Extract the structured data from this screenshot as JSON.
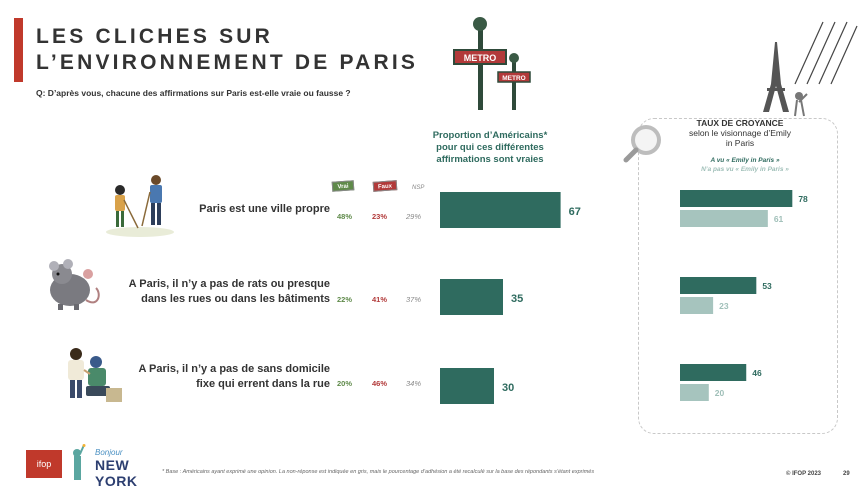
{
  "header": {
    "title_line1": "LES CLICHES SUR",
    "title_line2": "L’ENVIRONNEMENT DE PARIS",
    "question": "Q: D’après vous, chacune des affirmations sur Paris est-elle vraie ou fausse ?",
    "metro_sign": "METRO"
  },
  "chart_data": [
    {
      "type": "bar",
      "title_lines": [
        "Proportion d’Américains*",
        "pour qui ces différentes",
        "affirmations sont vraies"
      ],
      "categories": [
        [
          "Paris est une ville propre"
        ],
        [
          "A Paris, il n’y a pas de rats ou presque",
          "dans les rues ou dans les bâtiments"
        ],
        [
          "A Paris, il n’y a pas de sans domicile",
          "fixe qui errent dans la rue"
        ]
      ],
      "values": [
        67,
        35,
        30
      ],
      "xlim": [
        0,
        100
      ],
      "grid": false
    },
    {
      "type": "bar",
      "title": "TAUX DE CROYANCE",
      "subtitle_lines": [
        "selon le visionnage d’Emily",
        "in Paris"
      ],
      "categories": [
        "Paris est une ville propre",
        "rats",
        "sans domicile fixe"
      ],
      "series": [
        {
          "name": "A vu « Emily in Paris »",
          "values": [
            78,
            53,
            46
          ]
        },
        {
          "name": "N’a pas vu « Emily in Paris »",
          "values": [
            61,
            23,
            20
          ]
        }
      ],
      "xlim": [
        0,
        100
      ],
      "legend": "top"
    }
  ],
  "breakdown": {
    "labels": {
      "vrai": "Vrai",
      "faux": "Faux",
      "nsp": "NSP"
    },
    "rows": [
      {
        "vrai": "48%",
        "faux": "23%",
        "nsp": "29%"
      },
      {
        "vrai": "22%",
        "faux": "41%",
        "nsp": "37%"
      },
      {
        "vrai": "20%",
        "faux": "46%",
        "nsp": "34%"
      }
    ]
  },
  "colors": {
    "accent": "#c0392b",
    "bar_main": "#2f6b5f",
    "bar_seen": "#2f6b5f",
    "bar_not_seen": "#a6c4be",
    "vrai": "#5f8a4a",
    "faux": "#b23a3a"
  },
  "footer": {
    "footnote": "* Base : Américains ayant exprimé une opinion. La non-réponse est indiquée en gris, mais le pourcentage d’adhésion a été recalculé sur la base des répondants s’étant exprimés",
    "copyright": "© IFOP 2023",
    "page_number": "29",
    "logo_text": "ifop",
    "partner_line1": "Bonjour",
    "partner_line2": "NEW YORK"
  },
  "icons": [
    "metro-sign-icon",
    "eiffel-tower-icon",
    "magnifier-icon",
    "sweepers-illustration-icon",
    "rat-illustration-icon",
    "homeless-illustration-icon",
    "statue-of-liberty-icon"
  ]
}
